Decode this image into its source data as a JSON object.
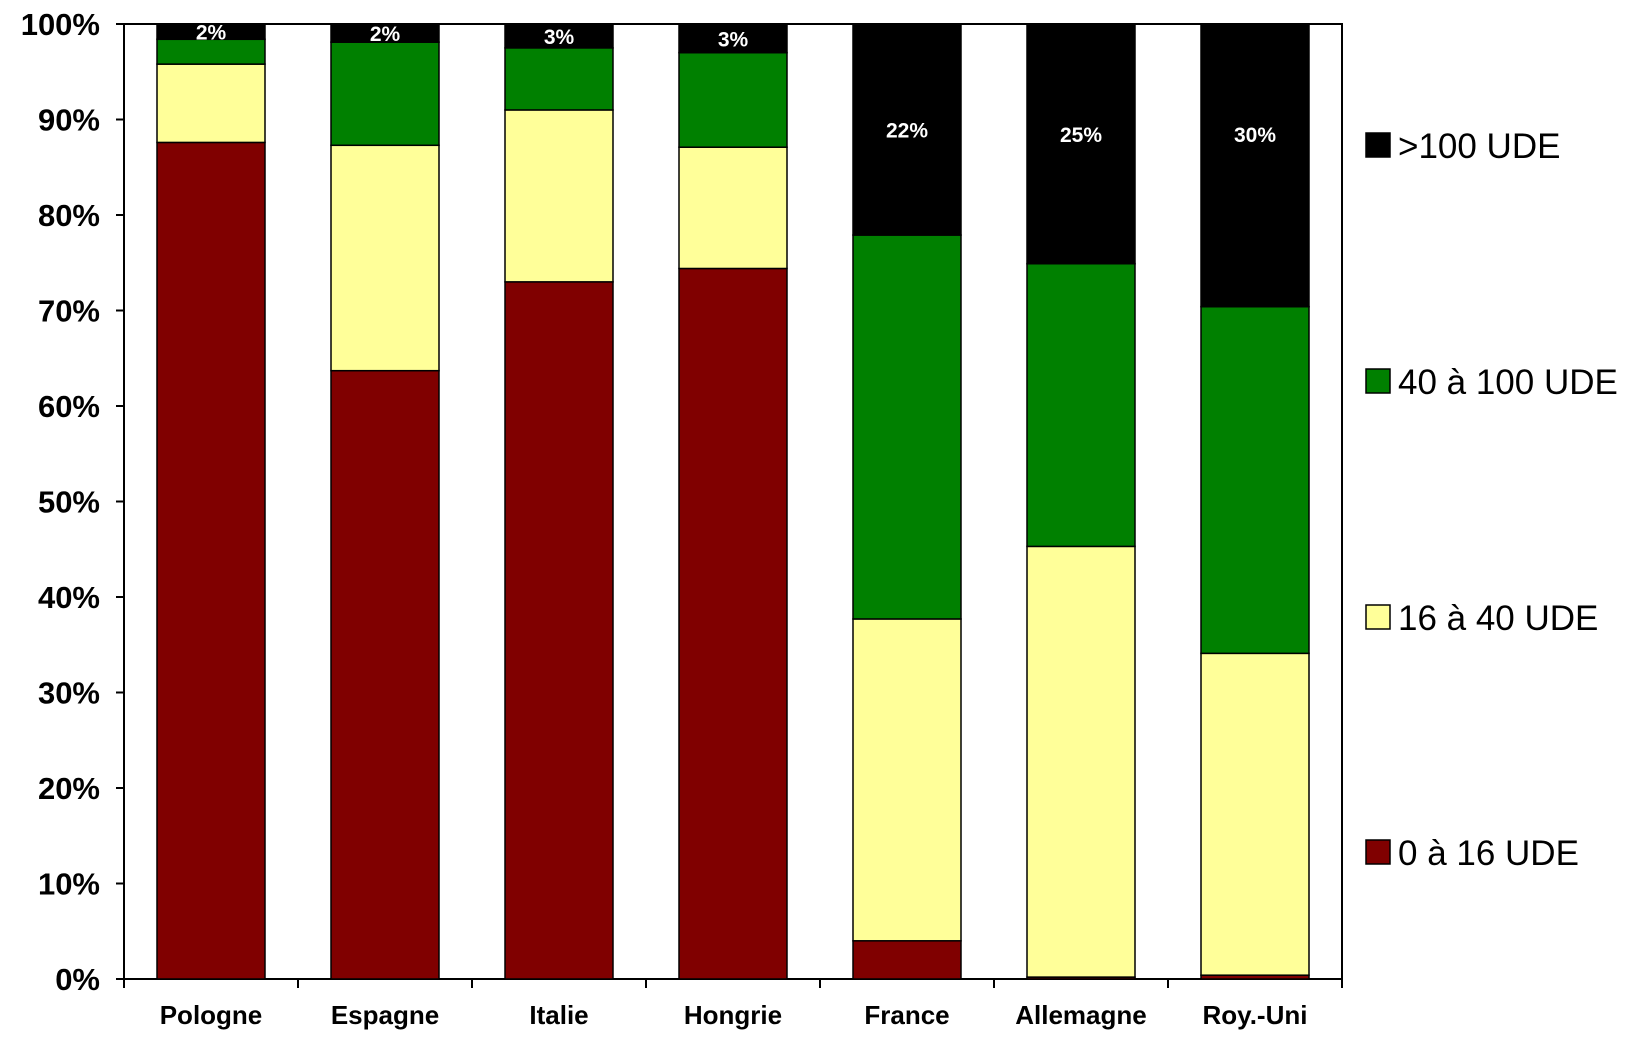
{
  "chart_data": {
    "type": "bar",
    "stacked": true,
    "percent_stacked": true,
    "categories": [
      "Pologne",
      "Espagne",
      "Italie",
      "Hongrie",
      "France",
      "Allemagne",
      "Roy.-Uni"
    ],
    "series": [
      {
        "name": "0 à 16 UDE",
        "color": "#800000",
        "values": [
          87.6,
          63.7,
          73.0,
          74.4,
          4.0,
          0.2,
          0.4
        ]
      },
      {
        "name": "16 à 40 UDE",
        "color": "#ffff99",
        "values": [
          8.2,
          23.6,
          18.0,
          12.7,
          33.7,
          45.1,
          33.7
        ]
      },
      {
        "name": "40 à 100 UDE",
        "color": "#008000",
        "values": [
          2.6,
          10.8,
          6.5,
          9.9,
          40.2,
          29.6,
          36.3
        ]
      },
      {
        "name": ">100 UDE",
        "color": "#000000",
        "values": [
          1.6,
          1.9,
          2.5,
          3.0,
          22.1,
          25.1,
          29.6
        ],
        "data_labels": [
          "2%",
          "2%",
          "3%",
          "3%",
          "22%",
          "25%",
          "30%"
        ]
      }
    ],
    "yticks": [
      "0%",
      "10%",
      "20%",
      "30%",
      "40%",
      "50%",
      "60%",
      "70%",
      "80%",
      "90%",
      "100%"
    ],
    "ylim": [
      0,
      100
    ],
    "grid": false,
    "legend_position": "right",
    "legend_order": [
      ">100 UDE",
      "40 à 100 UDE",
      "16 à 40 UDE",
      "0 à 16 UDE"
    ]
  }
}
